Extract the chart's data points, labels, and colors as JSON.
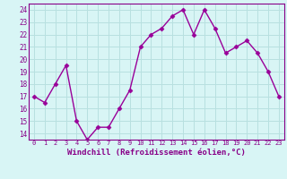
{
  "hours": [
    0,
    1,
    2,
    3,
    4,
    5,
    6,
    7,
    8,
    9,
    10,
    11,
    12,
    13,
    14,
    15,
    16,
    17,
    18,
    19,
    20,
    21,
    22,
    23
  ],
  "values": [
    17.0,
    16.5,
    18.0,
    19.5,
    15.0,
    13.5,
    14.5,
    14.5,
    16.0,
    17.5,
    21.0,
    22.0,
    22.5,
    23.5,
    24.0,
    22.0,
    24.0,
    22.5,
    20.5,
    21.0,
    21.5,
    20.5,
    19.0,
    17.0
  ],
  "line_color": "#990099",
  "marker": "D",
  "marker_size": 2.5,
  "bg_color": "#d8f5f5",
  "grid_color": "#b8e0e0",
  "axis_color": "#880088",
  "tick_color": "#880088",
  "xlabel": "Windchill (Refroidissement éolien,°C)",
  "ylim": [
    13.5,
    24.5
  ],
  "yticks": [
    14,
    15,
    16,
    17,
    18,
    19,
    20,
    21,
    22,
    23,
    24
  ],
  "xtick_fontsize": 5.0,
  "ytick_fontsize": 5.5,
  "xlabel_fontsize": 6.5,
  "linewidth": 1.0
}
